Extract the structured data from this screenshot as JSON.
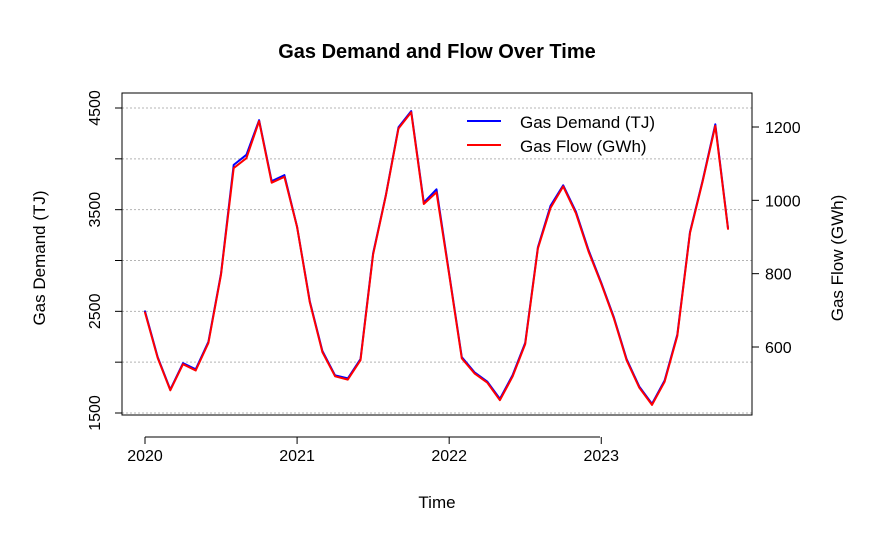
{
  "chart_data": {
    "type": "line",
    "title": "Gas Demand and Flow Over Time",
    "xlabel": "Time",
    "ylabel": "Gas Demand (TJ)",
    "y2label": "Gas Flow (GWh)",
    "xlim": [
      2020.0,
      2023.92
    ],
    "xticks": [
      2020,
      2021,
      2022,
      2023
    ],
    "ylim": [
      1500,
      4500
    ],
    "yticks": [
      1500,
      2500,
      3500,
      4500
    ],
    "y2lim": [
      415,
      1280
    ],
    "y2ticks": [
      600,
      800,
      1000,
      1200
    ],
    "grid": true,
    "legend_position": "top-right",
    "x": [
      "2020-01",
      "2020-02",
      "2020-03",
      "2020-04",
      "2020-05",
      "2020-06",
      "2020-07",
      "2020-08",
      "2020-09",
      "2020-10",
      "2020-11",
      "2020-12",
      "2021-01",
      "2021-02",
      "2021-03",
      "2021-04",
      "2021-05",
      "2021-06",
      "2021-07",
      "2021-08",
      "2021-09",
      "2021-10",
      "2021-11",
      "2021-12",
      "2022-01",
      "2022-02",
      "2022-03",
      "2022-04",
      "2022-05",
      "2022-06",
      "2022-07",
      "2022-08",
      "2022-09",
      "2022-10",
      "2022-11",
      "2022-12",
      "2023-01",
      "2023-02",
      "2023-03",
      "2023-04",
      "2023-05",
      "2023-06",
      "2023-07",
      "2023-08",
      "2023-09",
      "2023-10",
      "2023-11"
    ],
    "series": [
      {
        "name": "Gas Demand (TJ)",
        "color": "#0000ff",
        "axis": "left",
        "values": [
          2500,
          2050,
          1730,
          1990,
          1930,
          2200,
          2870,
          3940,
          4040,
          4380,
          3780,
          3840,
          3330,
          2600,
          2110,
          1870,
          1840,
          2030,
          3070,
          3640,
          4310,
          4470,
          3570,
          3700,
          2870,
          2050,
          1900,
          1810,
          1640,
          1870,
          2190,
          3130,
          3540,
          3740,
          3480,
          3100,
          2780,
          2440,
          2030,
          1760,
          1590,
          1820,
          2270,
          3280,
          3790,
          4340,
          3320
        ]
      },
      {
        "name": "Gas Flow (GWh)",
        "color": "#ff0000",
        "axis": "right",
        "values": [
          694,
          570,
          482,
          553,
          536,
          611,
          797,
          1088,
          1115,
          1216,
          1048,
          1064,
          927,
          722,
          586,
          520,
          511,
          564,
          852,
          1012,
          1196,
          1240,
          990,
          1022,
          797,
          569,
          528,
          503,
          455,
          519,
          608,
          869,
          980,
          1038,
          965,
          860,
          772,
          678,
          564,
          489,
          442,
          505,
          630,
          911,
          1052,
          1203,
          922
        ]
      }
    ]
  }
}
